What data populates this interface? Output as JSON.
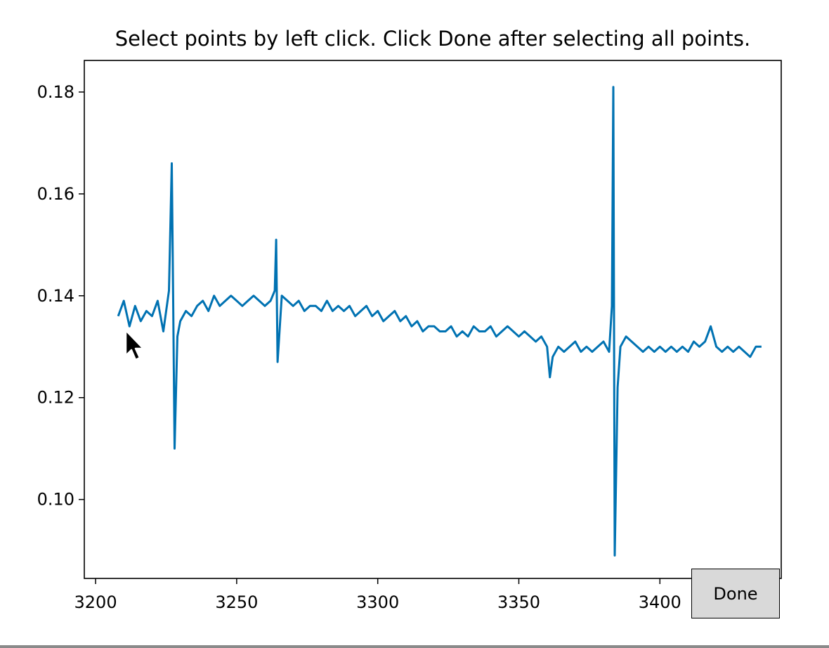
{
  "title": "Select points by left click. Click Done after selecting all points.",
  "done_label": "Done",
  "line_color": "#0072b2",
  "chart_data": {
    "type": "line",
    "title": "Select points by left click. Click Done after selecting all points.",
    "xlabel": "",
    "ylabel": "",
    "xlim": [
      3196,
      3443
    ],
    "ylim": [
      0.0845,
      0.1862
    ],
    "xticks": [
      3200,
      3250,
      3300,
      3350,
      3400
    ],
    "xtick_labels": [
      "3200",
      "3250",
      "3300",
      "3350",
      "3400"
    ],
    "yticks": [
      0.1,
      0.12,
      0.14,
      0.16,
      0.18
    ],
    "ytick_labels": [
      "0.10",
      "0.12",
      "0.14",
      "0.16",
      "0.18"
    ],
    "grid": false,
    "series": [
      {
        "x": [
          3208,
          3210,
          3212,
          3214,
          3216,
          3218,
          3220,
          3222,
          3224,
          3226,
          3227,
          3227.5,
          3228,
          3229,
          3230,
          3232,
          3234,
          3236,
          3238,
          3240,
          3242,
          3244,
          3246,
          3248,
          3250,
          3252,
          3254,
          3256,
          3258,
          3260,
          3262,
          3263.5,
          3264,
          3264.5,
          3266,
          3268,
          3270,
          3272,
          3274,
          3276,
          3278,
          3280,
          3282,
          3284,
          3286,
          3288,
          3290,
          3292,
          3294,
          3296,
          3298,
          3300,
          3302,
          3304,
          3306,
          3308,
          3310,
          3312,
          3314,
          3316,
          3318,
          3320,
          3322,
          3324,
          3326,
          3328,
          3330,
          3332,
          3334,
          3336,
          3338,
          3340,
          3342,
          3344,
          3346,
          3348,
          3350,
          3352,
          3354,
          3356,
          3358,
          3360,
          3361,
          3362,
          3364,
          3366,
          3368,
          3370,
          3372,
          3374,
          3376,
          3378,
          3380,
          3382,
          3383,
          3383.5,
          3384,
          3385,
          3386,
          3388,
          3390,
          3392,
          3394,
          3396,
          3398,
          3400,
          3402,
          3404,
          3406,
          3408,
          3410,
          3412,
          3414,
          3416,
          3418,
          3420,
          3422,
          3424,
          3426,
          3428,
          3430,
          3432,
          3434,
          3436
        ],
        "y": [
          0.136,
          0.139,
          0.134,
          0.138,
          0.135,
          0.137,
          0.136,
          0.139,
          0.133,
          0.141,
          0.166,
          0.139,
          0.11,
          0.132,
          0.135,
          0.137,
          0.136,
          0.138,
          0.139,
          0.137,
          0.14,
          0.138,
          0.139,
          0.14,
          0.139,
          0.138,
          0.139,
          0.14,
          0.139,
          0.138,
          0.139,
          0.141,
          0.151,
          0.127,
          0.14,
          0.139,
          0.138,
          0.139,
          0.137,
          0.138,
          0.138,
          0.137,
          0.139,
          0.137,
          0.138,
          0.137,
          0.138,
          0.136,
          0.137,
          0.138,
          0.136,
          0.137,
          0.135,
          0.136,
          0.137,
          0.135,
          0.136,
          0.134,
          0.135,
          0.133,
          0.134,
          0.134,
          0.133,
          0.133,
          0.134,
          0.132,
          0.133,
          0.132,
          0.134,
          0.133,
          0.133,
          0.134,
          0.132,
          0.133,
          0.134,
          0.133,
          0.132,
          0.133,
          0.132,
          0.131,
          0.132,
          0.13,
          0.124,
          0.128,
          0.13,
          0.129,
          0.13,
          0.131,
          0.129,
          0.13,
          0.129,
          0.13,
          0.131,
          0.129,
          0.138,
          0.181,
          0.089,
          0.122,
          0.13,
          0.132,
          0.131,
          0.13,
          0.129,
          0.13,
          0.129,
          0.13,
          0.129,
          0.13,
          0.129,
          0.13,
          0.129,
          0.131,
          0.13,
          0.131,
          0.134,
          0.13,
          0.129,
          0.13,
          0.129,
          0.13,
          0.129,
          0.128,
          0.13,
          0.13
        ]
      }
    ]
  }
}
